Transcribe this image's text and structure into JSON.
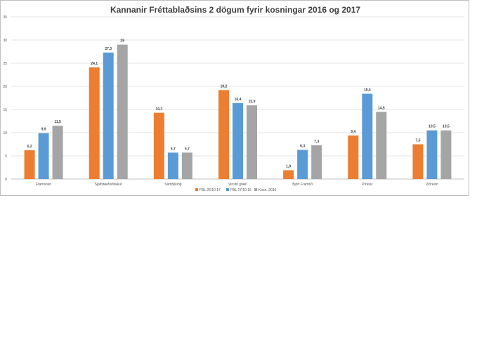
{
  "chart_data": {
    "type": "bar",
    "title": "Kannanir Fréttablaðsins 2 dögum fyrir kosningar 2016 og 2017",
    "xlabel": "",
    "ylabel": "",
    "ylim": [
      0,
      35
    ],
    "yticks": [
      "0",
      "5",
      "10",
      "15",
      "20",
      "25",
      "30",
      "35"
    ],
    "grid": true,
    "legend_position": "bottom",
    "categories": [
      "Framsókn",
      "Sjálfstæðisflokkur",
      "Samfylking",
      "Vinstri græn",
      "Björt Framtíð",
      "Píratar",
      "Viðreisn"
    ],
    "series": [
      {
        "name": "FBL 26/10 17",
        "color": "#ed7d31",
        "values": [
          6.2,
          24.1,
          14.3,
          19.2,
          1.9,
          9.4,
          7.5
        ],
        "labels": [
          "6,2",
          "24,1",
          "14,3",
          "19,2",
          "1,9",
          "9,4",
          "7,5"
        ]
      },
      {
        "name": "FBL 27/10 16",
        "color": "#5b9bd5",
        "values": [
          9.9,
          27.3,
          5.7,
          16.4,
          6.3,
          18.4,
          10.5
        ],
        "labels": [
          "9,9",
          "27,3",
          "5,7",
          "16,4",
          "6,3",
          "18,4",
          "10,5"
        ]
      },
      {
        "name": "Kosn. 2016",
        "color": "#a5a5a5",
        "values": [
          11.5,
          29,
          5.7,
          15.9,
          7.3,
          14.5,
          10.5
        ],
        "labels": [
          "11,5",
          "29",
          "5,7",
          "15,9",
          "7,3",
          "14,5",
          "10,5"
        ]
      }
    ]
  }
}
